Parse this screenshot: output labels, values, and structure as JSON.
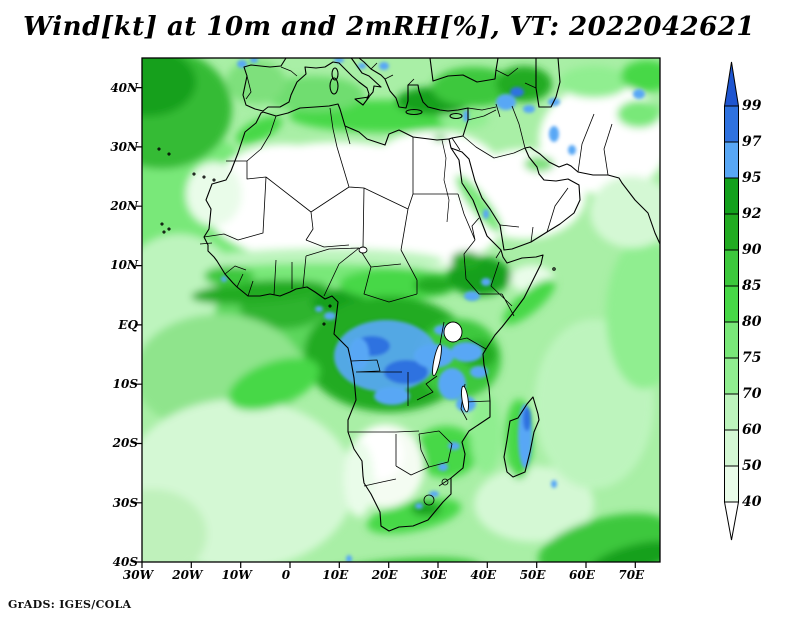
{
  "title": "Wind[kt] at 10m and 2mRH[%], VT: 2022042621",
  "credit": "GrADS: IGES/COLA",
  "axes": {
    "lat_labels": [
      "40N",
      "30N",
      "20N",
      "10N",
      "EQ",
      "10S",
      "20S",
      "30S",
      "40S"
    ],
    "lon_labels": [
      "30W",
      "20W",
      "10W",
      "0",
      "10E",
      "20E",
      "30E",
      "40E",
      "50E",
      "60E",
      "70E"
    ]
  },
  "colorbar": {
    "levels": [
      "99",
      "97",
      "95",
      "92",
      "90",
      "85",
      "80",
      "75",
      "70",
      "60",
      "50",
      "40"
    ],
    "segment_colors": [
      "#2e72e0",
      "#58a7f5",
      "#12a01c",
      "#21ab21",
      "#3cc83c",
      "#46d846",
      "#79e879",
      "#90ee90",
      "#bdf4bd",
      "#d4f8d4",
      "#e9fce9"
    ],
    "above_color": "#1e55d0",
    "below_color": "#ffffff"
  },
  "chart_data": {
    "type": "heatmap",
    "title": "Wind[kt] at 10m and 2mRH[%], VT: 2022042621",
    "field": "2 m relative humidity (%), filled contours over Africa map",
    "valid_time": "2022042621",
    "region": "Africa, southern Europe, Middle East and surrounding oceans",
    "lon_range_deg": [
      -30,
      75
    ],
    "lat_range_deg": [
      -40,
      45
    ],
    "x_ticks": [
      "30W",
      "20W",
      "10W",
      "0",
      "10E",
      "20E",
      "30E",
      "40E",
      "50E",
      "60E",
      "70E"
    ],
    "y_ticks": [
      "40N",
      "30N",
      "20N",
      "10N",
      "EQ",
      "10S",
      "20S",
      "30S",
      "40S"
    ],
    "contour_levels_percent": [
      40,
      50,
      60,
      70,
      75,
      80,
      85,
      90,
      92,
      95,
      97,
      99
    ],
    "palette_low_to_high": [
      "#ffffff",
      "#e9fce9",
      "#d4f8d4",
      "#bdf4bd",
      "#90ee90",
      "#79e879",
      "#46d846",
      "#3cc83c",
      "#21ab21",
      "#12a01c",
      "#58a7f5",
      "#2e72e0",
      "#1e55d0"
    ],
    "legend_position": "vertical colorbar at right with arrowhead ends",
    "grid": false,
    "notable_features": [
      {
        "area": "Sahara desert and Arabian Peninsula interior",
        "rh_percent": "below 40 (white)"
      },
      {
        "area": "Congo basin, Angola, Zambia, around Lake Victoria",
        "rh_percent": "95-99 (blue patches)"
      },
      {
        "area": "Eastern Madagascar",
        "rh_percent": "95-99 (blue)"
      },
      {
        "area": "Ethiopian highlands, Guinea coast, Mediterranean coast, Caucasus",
        "rh_percent": "85-95 (dark green)"
      },
      {
        "area": "Most open ocean",
        "rh_percent": "60-90 (light to mid green)"
      },
      {
        "area": "Kalahari / Namibia and south-central South Atlantic",
        "rh_percent": "40-60 (very pale green)"
      },
      {
        "area": "SW Atlantic and SE of Madagascar storm bands",
        "rh_percent": "85-95 (dark green diagonal bands)"
      }
    ]
  }
}
